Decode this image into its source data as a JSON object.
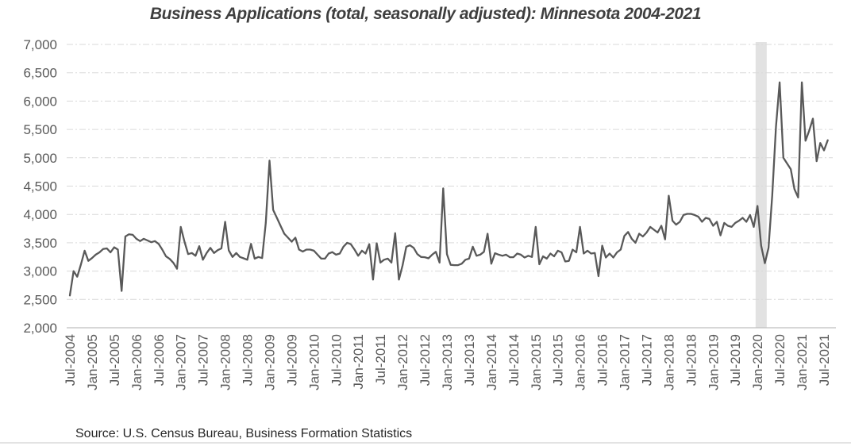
{
  "title": "Business Applications (total, seasonally adjusted): Minnesota 2004-2021",
  "source": "Source: U.S. Census Bureau, Business Formation Statistics",
  "colors": {
    "title_text": "#3f3f3f",
    "axis_text": "#595959",
    "line": "#595959",
    "gridline": "#d9d9d9",
    "axis_line": "#bfbfbf",
    "recession_band": "#e2e2e2",
    "source_text": "#262626"
  },
  "chart_data": {
    "type": "line",
    "title": "Business Applications (total, seasonally adjusted): Minnesota 2004-2021",
    "series_name": "Business Applications (total, seasonally adjusted)",
    "xlabel": "",
    "ylabel": "",
    "ylim": [
      2000,
      7000
    ],
    "y_ticks": [
      2000,
      2500,
      3000,
      3500,
      4000,
      4500,
      5000,
      5500,
      6000,
      6500,
      7000
    ],
    "grid": "dashed horizontal",
    "legend": "none",
    "x_start_month": "Jul-2004",
    "x_end_month": "Aug-2021",
    "x_tick_labels": [
      "Jul-2004",
      "Jan-2005",
      "Jul-2005",
      "Jan-2006",
      "Jul-2006",
      "Jan-2007",
      "Jul-2007",
      "Jan-2008",
      "Jul-2008",
      "Jan-2009",
      "Jul-2009",
      "Jan-2010",
      "Jul-2010",
      "Jan-2011",
      "Jul-2011",
      "Jan-2012",
      "Jul-2012",
      "Jan-2013",
      "Jul-2013",
      "Jan-2014",
      "Jul-2014",
      "Jan-2015",
      "Jul-2015",
      "Jan-2016",
      "Jul-2016",
      "Jan-2017",
      "Jul-2017",
      "Jan-2018",
      "Jul-2018",
      "Jan-2019",
      "Jul-2019",
      "Jan-2020",
      "Jul-2020",
      "Jan-2021",
      "Jul-2021"
    ],
    "recession_band": {
      "start": "Jan-2020",
      "end": "Mar-2020"
    },
    "values": [
      2570,
      3000,
      2900,
      3120,
      3360,
      3180,
      3230,
      3290,
      3330,
      3390,
      3400,
      3330,
      3420,
      3380,
      2650,
      3610,
      3650,
      3640,
      3570,
      3530,
      3570,
      3540,
      3510,
      3530,
      3480,
      3380,
      3260,
      3215,
      3145,
      3040,
      3780,
      3520,
      3300,
      3320,
      3270,
      3440,
      3200,
      3320,
      3410,
      3320,
      3370,
      3400,
      3870,
      3365,
      3250,
      3320,
      3250,
      3225,
      3200,
      3480,
      3220,
      3250,
      3230,
      3850,
      4950,
      4080,
      3940,
      3800,
      3660,
      3590,
      3520,
      3590,
      3380,
      3345,
      3380,
      3380,
      3360,
      3290,
      3220,
      3220,
      3310,
      3335,
      3290,
      3310,
      3430,
      3500,
      3475,
      3380,
      3270,
      3360,
      3310,
      3475,
      2850,
      3490,
      3150,
      3200,
      3220,
      3150,
      3670,
      2850,
      3100,
      3430,
      3455,
      3410,
      3300,
      3250,
      3245,
      3225,
      3290,
      3340,
      3150,
      4460,
      3300,
      3110,
      3105,
      3105,
      3130,
      3200,
      3220,
      3430,
      3270,
      3290,
      3340,
      3660,
      3130,
      3315,
      3290,
      3270,
      3290,
      3245,
      3245,
      3310,
      3290,
      3240,
      3270,
      3250,
      3780,
      3120,
      3260,
      3220,
      3310,
      3260,
      3360,
      3330,
      3170,
      3180,
      3380,
      3330,
      3780,
      3310,
      3360,
      3310,
      3320,
      2910,
      3450,
      3240,
      3310,
      3240,
      3330,
      3380,
      3620,
      3690,
      3570,
      3500,
      3660,
      3610,
      3680,
      3780,
      3730,
      3680,
      3800,
      3560,
      4330,
      3890,
      3820,
      3870,
      3990,
      4010,
      4010,
      3990,
      3960,
      3870,
      3940,
      3920,
      3800,
      3870,
      3630,
      3850,
      3800,
      3780,
      3850,
      3890,
      3940,
      3870,
      3990,
      3780,
      4150,
      3450,
      3140,
      3410,
      4340,
      5550,
      6330,
      5000,
      4900,
      4800,
      4450,
      4300,
      6330,
      5300,
      5480,
      5690,
      4940,
      5260,
      5130,
      5310
    ]
  }
}
